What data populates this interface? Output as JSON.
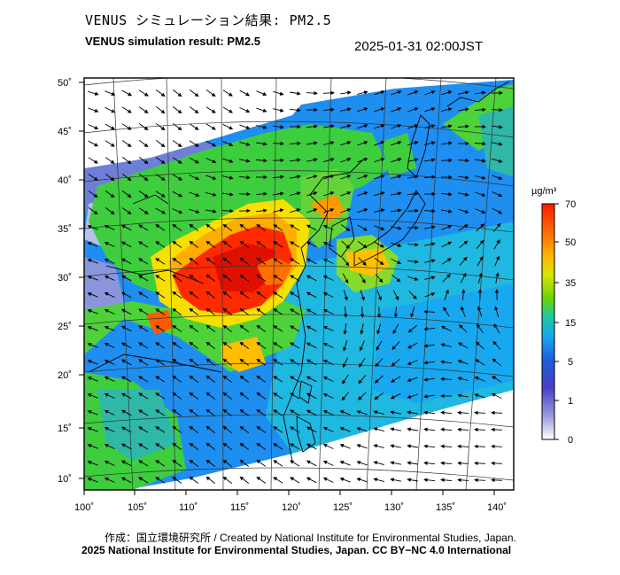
{
  "title_jp": "VENUS シミュレーション結果: PM2.5",
  "title_en": "VENUS simulation result: PM2.5",
  "timestamp": "2025-01-31 02:00JST",
  "axes": {
    "lat_labels": [
      "50˚",
      "45˚",
      "40˚",
      "35˚",
      "30˚",
      "25˚",
      "20˚",
      "15˚",
      "10˚"
    ],
    "lon_labels": [
      "100˚",
      "105˚",
      "110˚",
      "115˚",
      "120˚",
      "125˚",
      "130˚",
      "135˚",
      "140˚"
    ]
  },
  "colorbar": {
    "unit": "µg/m³",
    "labels": [
      "70",
      "50",
      "35",
      "15",
      "5",
      "1",
      "0"
    ],
    "colors": [
      "#ff1a00",
      "#ff6a00",
      "#ffb400",
      "#d8e600",
      "#6bd400",
      "#1fc8a0",
      "#18a8f0",
      "#1e5adc",
      "#4a40c8",
      "#9a9ae0",
      "#ffffff"
    ]
  },
  "footer": {
    "line1": "作成：国立環境研究所 / Created by National Institute for Environmental Studies, Japan.",
    "line2": "2025 National Institute for Environmental Studies, Japan. CC BY−NC 4.0 International"
  }
}
